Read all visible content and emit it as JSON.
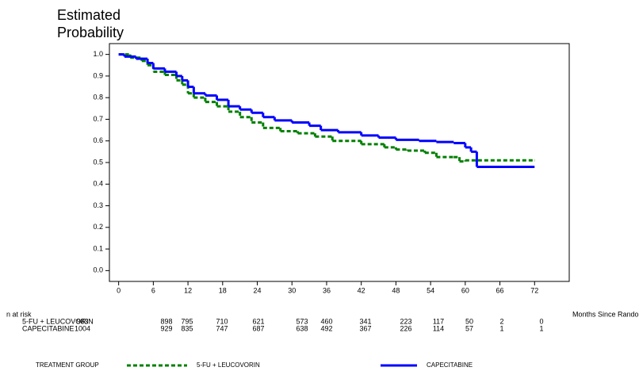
{
  "chart_data": {
    "type": "line",
    "drawstyle": "steps-post",
    "y_label": "Estimated Probability",
    "x_label": "Months Since Randomization",
    "xlim": [
      -1.6,
      78
    ],
    "xticks": [
      0,
      6,
      12,
      18,
      24,
      30,
      36,
      42,
      48,
      54,
      60,
      66,
      72
    ],
    "ylim": [
      -0.05,
      1.05
    ],
    "yticks": [
      {
        "value": 0,
        "label": "0.0"
      },
      {
        "value": 0.1,
        "label": "0.1"
      },
      {
        "value": 0.2,
        "label": "0.2"
      },
      {
        "value": 0.3,
        "label": "0.3"
      },
      {
        "value": 0.4,
        "label": "0.4"
      },
      {
        "value": 0.5,
        "label": "0.5"
      },
      {
        "value": 0.6,
        "label": "0.6"
      },
      {
        "value": 0.7,
        "label": "0.7"
      },
      {
        "value": 0.8,
        "label": "0.8"
      },
      {
        "value": 0.9,
        "label": "0.9"
      },
      {
        "value": 1,
        "label": "1.0"
      }
    ],
    "legend_title": "TREATMENT GROUP",
    "series": [
      {
        "name": "5-FU + LEUCOVORIN",
        "color": "#008000",
        "dash": true,
        "x": [
          0,
          2,
          4,
          5,
          6,
          8,
          10,
          11,
          12,
          13,
          15,
          17,
          19,
          21,
          23,
          25,
          28,
          31,
          34,
          37,
          42,
          46,
          48,
          50,
          53,
          55,
          58,
          59,
          60,
          72
        ],
        "values": [
          1.0,
          0.985,
          0.97,
          0.95,
          0.92,
          0.905,
          0.88,
          0.86,
          0.82,
          0.8,
          0.78,
          0.76,
          0.735,
          0.71,
          0.685,
          0.66,
          0.645,
          0.635,
          0.62,
          0.6,
          0.585,
          0.57,
          0.56,
          0.555,
          0.545,
          0.525,
          0.525,
          0.505,
          0.51,
          0.51
        ]
      },
      {
        "name": "CAPECITABINE",
        "color": "#0000ff",
        "dash": false,
        "x": [
          0,
          1,
          3,
          5,
          6,
          8,
          10,
          11,
          12,
          13,
          15,
          17,
          19,
          21,
          23,
          25,
          27,
          30,
          33,
          35,
          38,
          42,
          45,
          48,
          52,
          55,
          58,
          60,
          61,
          62,
          72
        ],
        "values": [
          1.0,
          0.99,
          0.98,
          0.96,
          0.935,
          0.92,
          0.9,
          0.88,
          0.85,
          0.82,
          0.81,
          0.79,
          0.76,
          0.745,
          0.73,
          0.71,
          0.695,
          0.685,
          0.67,
          0.65,
          0.64,
          0.625,
          0.615,
          0.605,
          0.6,
          0.595,
          0.59,
          0.57,
          0.55,
          0.48,
          0.48
        ]
      }
    ],
    "risk_table": {
      "title": "n at risk",
      "rows": [
        {
          "name": "5-FU + LEUCOVORIN",
          "counts": [
            983,
            898,
            795,
            710,
            621,
            573,
            460,
            341,
            223,
            117,
            50,
            2,
            0
          ]
        },
        {
          "name": "CAPECITABINE",
          "counts": [
            1004,
            929,
            835,
            747,
            687,
            638,
            492,
            367,
            226,
            114,
            57,
            1,
            1
          ]
        }
      ]
    }
  }
}
